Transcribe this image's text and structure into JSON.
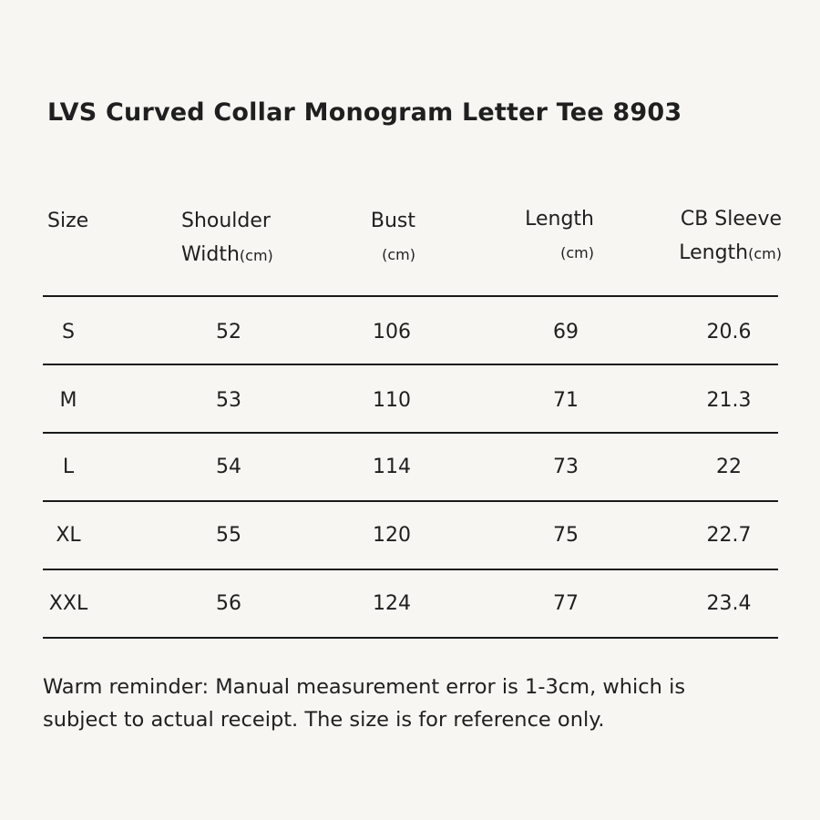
{
  "title": "LVS Curved Collar Monogram Letter Tee 8903",
  "table": {
    "headers": {
      "size": {
        "line1": "Size"
      },
      "shoulder": {
        "line1": "Shoulder",
        "line2_text": "Width",
        "unit": "(cm)"
      },
      "bust": {
        "line1": "Bust",
        "unit": "(cm)"
      },
      "length": {
        "line1": "Length",
        "unit": "(cm)"
      },
      "sleeve": {
        "line1": "CB Sleeve",
        "line2_text": "Length",
        "unit": "(cm)"
      }
    },
    "rows": [
      {
        "size": "S",
        "shoulder": "52",
        "bust": "106",
        "length": "69",
        "sleeve": "20.6"
      },
      {
        "size": "M",
        "shoulder": "53",
        "bust": "110",
        "length": "71",
        "sleeve": "21.3"
      },
      {
        "size": "L",
        "shoulder": "54",
        "bust": "114",
        "length": "73",
        "sleeve": "22"
      },
      {
        "size": "XL",
        "shoulder": "55",
        "bust": "120",
        "length": "75",
        "sleeve": "22.7"
      },
      {
        "size": "XXL",
        "shoulder": "56",
        "bust": "124",
        "length": "77",
        "sleeve": "23.4"
      }
    ]
  },
  "note": {
    "line1": "Warm reminder: Manual measurement error is 1-3cm, which is",
    "line2": "subject to actual receipt. The size is for reference only."
  }
}
